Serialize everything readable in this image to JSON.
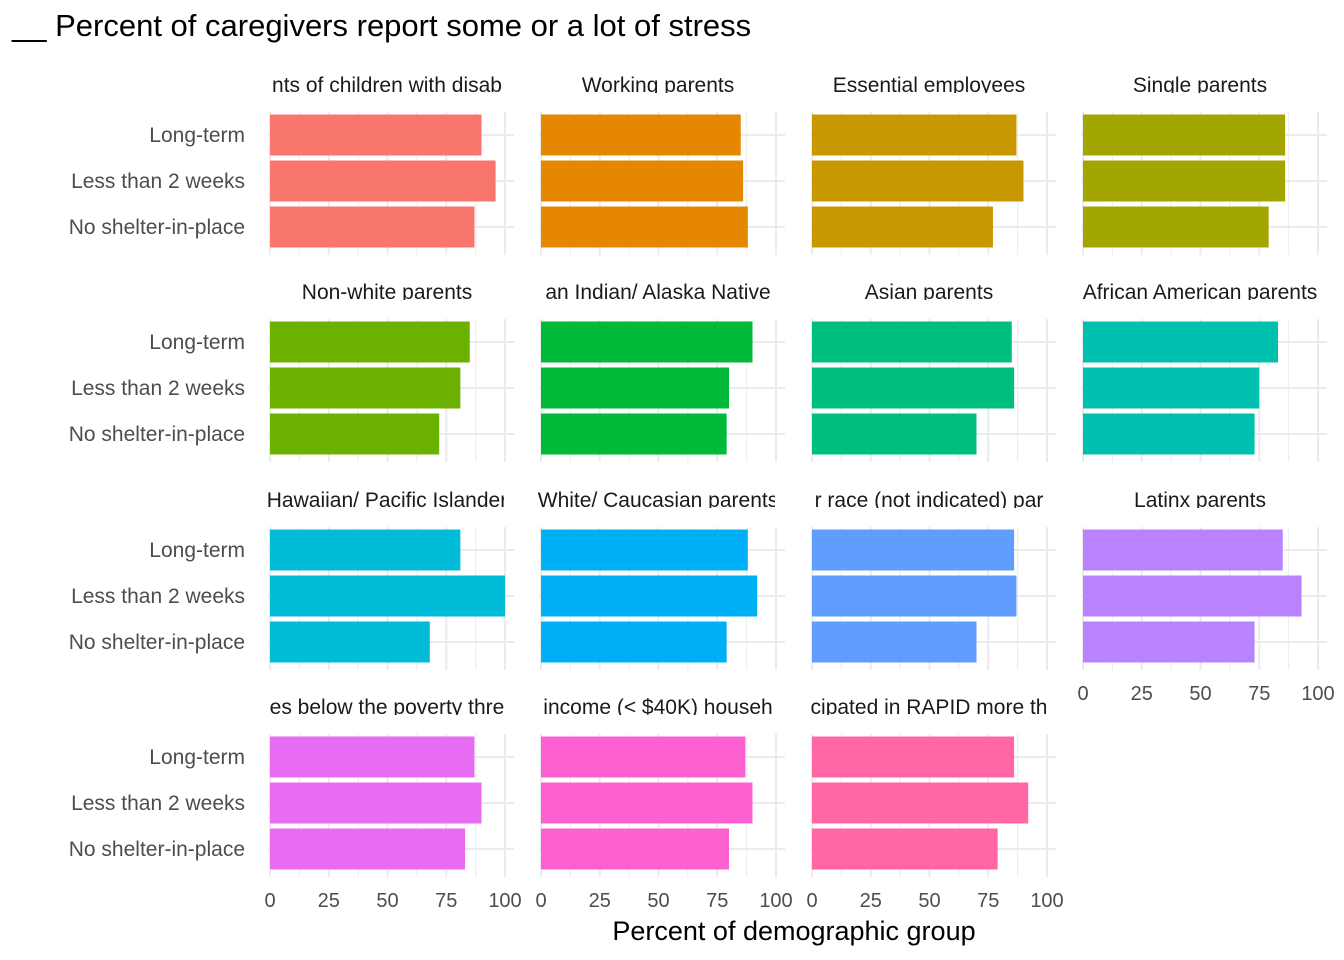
{
  "chart_data": {
    "type": "bar",
    "orientation": "horizontal",
    "title": "__ Percent of caregivers report some or a lot of stress",
    "xlabel": "Percent of demographic group",
    "ylabel": "",
    "xlim": [
      0,
      100
    ],
    "x_ticks": [
      "0",
      "25",
      "50",
      "75",
      "100"
    ],
    "categories": [
      "Long-term",
      "Less than 2 weeks",
      "No shelter-in-place"
    ],
    "grid": true,
    "panels": [
      {
        "name": "nts of children with disab",
        "color": "#F8766D",
        "values": [
          90,
          96,
          87
        ]
      },
      {
        "name": "Working parents",
        "color": "#E58700",
        "values": [
          85,
          86,
          88
        ]
      },
      {
        "name": "Essential employees",
        "color": "#C99800",
        "values": [
          87,
          90,
          77
        ]
      },
      {
        "name": "Single parents",
        "color": "#A3A500",
        "values": [
          86,
          86,
          79
        ]
      },
      {
        "name": "Non-white parents",
        "color": "#6BB100",
        "values": [
          85,
          81,
          72
        ]
      },
      {
        "name": "an Indian/ Alaska Native",
        "color": "#00BA38",
        "values": [
          90,
          80,
          79
        ]
      },
      {
        "name": "Asian parents",
        "color": "#00BF7D",
        "values": [
          85,
          86,
          70
        ]
      },
      {
        "name": "African American parents",
        "color": "#00C0AF",
        "values": [
          83,
          75,
          73
        ]
      },
      {
        "name": "Hawaiian/ Pacific Islander",
        "color": "#00BCD8",
        "values": [
          81,
          100,
          68
        ]
      },
      {
        "name": "White/ Caucasian parents",
        "color": "#00B0F6",
        "values": [
          88,
          92,
          79
        ]
      },
      {
        "name": "r race (not indicated) par",
        "color": "#619CFF",
        "values": [
          86,
          87,
          70
        ]
      },
      {
        "name": "Latinx parents",
        "color": "#B983FF",
        "values": [
          85,
          93,
          73
        ]
      },
      {
        "name": "es below the poverty thre",
        "color": "#E76BF3",
        "values": [
          87,
          90,
          83
        ]
      },
      {
        "name": "income (< $40K) househ",
        "color": "#FD61D1",
        "values": [
          87,
          90,
          80
        ]
      },
      {
        "name": "cipated in RAPID more th",
        "color": "#FF67A4",
        "values": [
          86,
          92,
          79
        ]
      }
    ]
  }
}
